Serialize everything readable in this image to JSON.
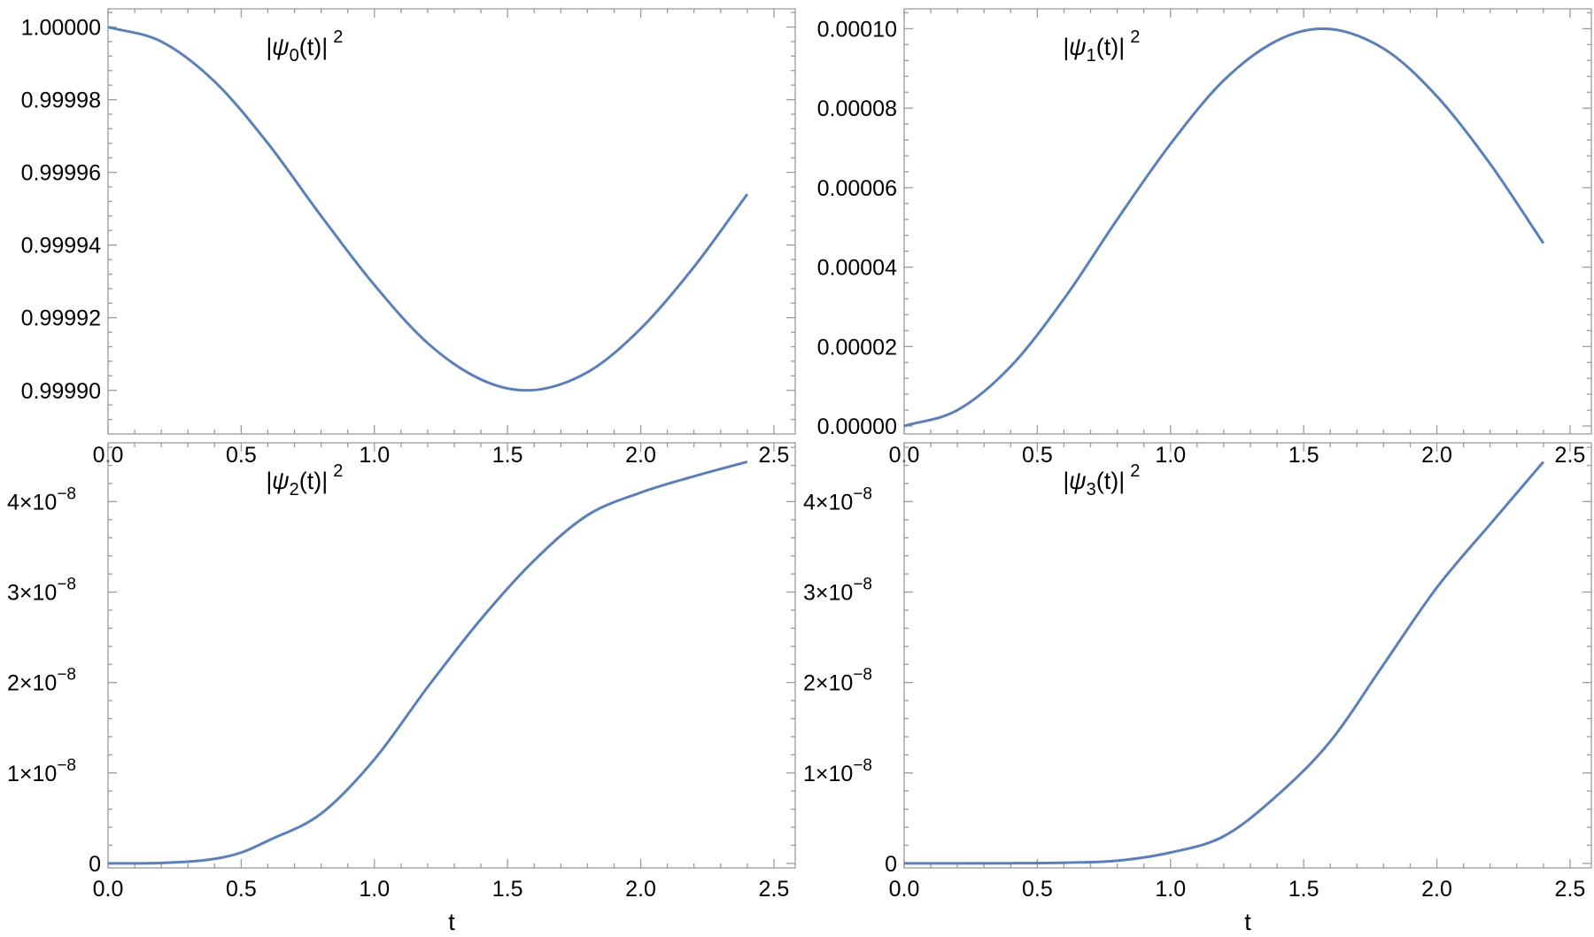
{
  "chart_data": [
    {
      "type": "line",
      "panel_label": {
        "prefix": "|ψ",
        "sub": "0",
        "mid": "(t)|",
        "sup": "2"
      },
      "xlabel": "",
      "x_ticks": [
        "0.0",
        "0.5",
        "1.0",
        "1.5",
        "2.0",
        "2.5"
      ],
      "x_tick_values": [
        0,
        0.5,
        1.0,
        1.5,
        2.0,
        2.5
      ],
      "xlim": [
        0,
        2.58
      ],
      "ylim": [
        0.999888,
        1.000005
      ],
      "y_ticks": [
        {
          "value": 1.0,
          "mantissa": "1.00000",
          "exponent": ""
        },
        {
          "value": 0.99998,
          "mantissa": "0.99998",
          "exponent": ""
        },
        {
          "value": 0.99996,
          "mantissa": "0.99996",
          "exponent": ""
        },
        {
          "value": 0.99994,
          "mantissa": "0.99994",
          "exponent": ""
        },
        {
          "value": 0.99992,
          "mantissa": "0.99992",
          "exponent": ""
        },
        {
          "value": 0.9999,
          "mantissa": "0.99990",
          "exponent": ""
        }
      ],
      "series": [
        {
          "x": [
            0,
            0.2,
            0.4,
            0.6,
            0.8,
            1.0,
            1.2,
            1.4,
            1.5708,
            1.8,
            2.0,
            2.2,
            2.4
          ],
          "y": [
            1.0,
            0.999996,
            0.999985,
            0.999968,
            0.999948,
            0.999929,
            0.999913,
            0.999903,
            0.9999,
            0.999905,
            0.999917,
            0.999934,
            0.999954
          ]
        }
      ],
      "grid": false
    },
    {
      "type": "line",
      "panel_label": {
        "prefix": "|ψ",
        "sub": "1",
        "mid": "(t)|",
        "sup": "2"
      },
      "xlabel": "",
      "x_ticks": [
        "0.0",
        "0.5",
        "1.0",
        "1.5",
        "2.0",
        "2.5"
      ],
      "x_tick_values": [
        0,
        0.5,
        1.0,
        1.5,
        2.0,
        2.5
      ],
      "xlim": [
        0,
        2.58
      ],
      "ylim": [
        -2e-06,
        0.000105
      ],
      "y_ticks": [
        {
          "value": 0.0,
          "mantissa": "0.00000",
          "exponent": ""
        },
        {
          "value": 2e-05,
          "mantissa": "0.00002",
          "exponent": ""
        },
        {
          "value": 4e-05,
          "mantissa": "0.00004",
          "exponent": ""
        },
        {
          "value": 6e-05,
          "mantissa": "0.00006",
          "exponent": ""
        },
        {
          "value": 8e-05,
          "mantissa": "0.00008",
          "exponent": ""
        },
        {
          "value": 0.0001,
          "mantissa": "0.00010",
          "exponent": ""
        }
      ],
      "series": [
        {
          "x": [
            0,
            0.2,
            0.4,
            0.6,
            0.8,
            1.0,
            1.2,
            1.4,
            1.5708,
            1.8,
            2.0,
            2.2,
            2.4
          ],
          "y": [
            0.0,
            4e-06,
            1.5e-05,
            3.2e-05,
            5.2e-05,
            7.1e-05,
            8.7e-05,
            9.7e-05,
            0.0001,
            9.5e-05,
            8.3e-05,
            6.6e-05,
            4.6e-05
          ]
        }
      ],
      "grid": false
    },
    {
      "type": "line",
      "panel_label": {
        "prefix": "|ψ",
        "sub": "2",
        "mid": "(t)|",
        "sup": "2"
      },
      "xlabel": "t",
      "x_ticks": [
        "0.0",
        "0.5",
        "1.0",
        "1.5",
        "2.0",
        "2.5"
      ],
      "x_tick_values": [
        0,
        0.5,
        1.0,
        1.5,
        2.0,
        2.5
      ],
      "xlim": [
        0,
        2.58
      ],
      "ylim": [
        -5e-10,
        4.65e-08
      ],
      "y_ticks": [
        {
          "value": 0.0,
          "mantissa": "0",
          "exponent": ""
        },
        {
          "value": 1e-08,
          "mantissa": "1×10",
          "exponent": "−8"
        },
        {
          "value": 2e-08,
          "mantissa": "2×10",
          "exponent": "−8"
        },
        {
          "value": 3e-08,
          "mantissa": "3×10",
          "exponent": "−8"
        },
        {
          "value": 4e-08,
          "mantissa": "4×10",
          "exponent": "−8"
        }
      ],
      "series": [
        {
          "x": [
            0,
            0.2,
            0.4,
            0.5,
            0.6,
            0.8,
            1.0,
            1.2,
            1.4,
            1.6,
            1.8,
            2.0,
            2.2,
            2.4
          ],
          "y": [
            0.0,
            5e-11,
            5e-10,
            1.2e-09,
            2.5e-09,
            5.5e-09,
            1.15e-08,
            1.95e-08,
            2.7e-08,
            3.35e-08,
            3.85e-08,
            4.1e-08,
            4.28e-08,
            4.44e-08
          ]
        }
      ],
      "grid": false
    },
    {
      "type": "line",
      "panel_label": {
        "prefix": "|ψ",
        "sub": "3",
        "mid": "(t)|",
        "sup": "2"
      },
      "xlabel": "t",
      "x_ticks": [
        "0.0",
        "0.5",
        "1.0",
        "1.5",
        "2.0",
        "2.5"
      ],
      "x_tick_values": [
        0,
        0.5,
        1.0,
        1.5,
        2.0,
        2.5
      ],
      "xlim": [
        0,
        2.58
      ],
      "ylim": [
        -5e-10,
        4.65e-08
      ],
      "y_ticks": [
        {
          "value": 0.0,
          "mantissa": "0",
          "exponent": ""
        },
        {
          "value": 1e-08,
          "mantissa": "1×10",
          "exponent": "−8"
        },
        {
          "value": 2e-08,
          "mantissa": "2×10",
          "exponent": "−8"
        },
        {
          "value": 3e-08,
          "mantissa": "3×10",
          "exponent": "−8"
        },
        {
          "value": 4e-08,
          "mantissa": "4×10",
          "exponent": "−8"
        }
      ],
      "series": [
        {
          "x": [
            0,
            0.2,
            0.4,
            0.6,
            0.8,
            1.0,
            1.2,
            1.4,
            1.6,
            1.8,
            2.0,
            2.2,
            2.4
          ],
          "y": [
            0.0,
            0.0,
            2e-11,
            8e-11,
            3e-10,
            1.2e-09,
            3e-09,
            7.5e-09,
            1.35e-08,
            2.2e-08,
            3.05e-08,
            3.75e-08,
            4.44e-08
          ]
        }
      ],
      "grid": false
    }
  ],
  "colors": {
    "series_line": "#5b7fb9",
    "frame": "#9a9a9a",
    "text": "#000000",
    "background": "#ffffff"
  }
}
